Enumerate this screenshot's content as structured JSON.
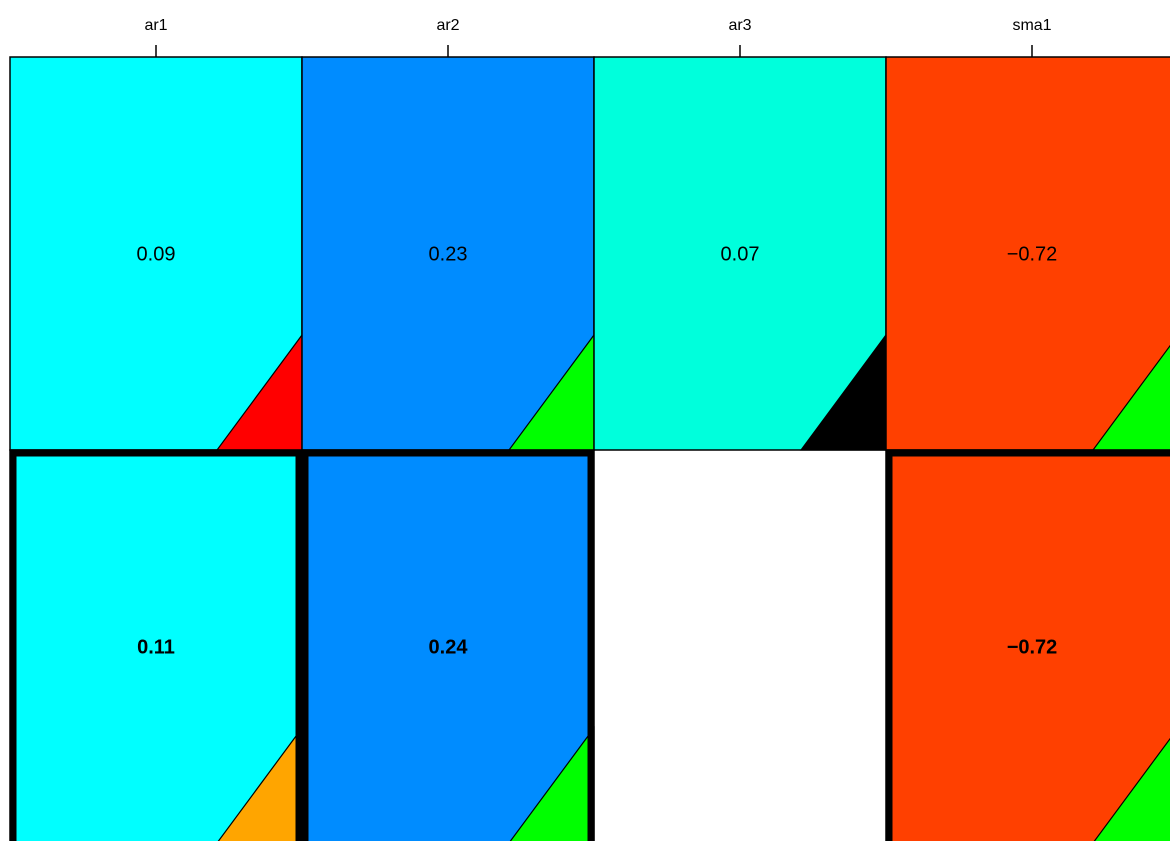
{
  "chart_data": {
    "type": "heatmap",
    "title": "",
    "xlabel": "",
    "ylabel": "",
    "columns": [
      "ar1",
      "ar2",
      "ar3",
      "sma1"
    ],
    "rows": [
      {
        "emphasis": false,
        "cells": [
          {
            "value": 0.09,
            "label": "0.09",
            "color": "#00FFFF",
            "corner_color": "#FF0000"
          },
          {
            "value": 0.23,
            "label": "0.23",
            "color": "#008CFF",
            "corner_color": "#00FF00"
          },
          {
            "value": 0.07,
            "label": "0.07",
            "color": "#00FFDC",
            "corner_color": "#000000"
          },
          {
            "value": -0.72,
            "label": "−0.72",
            "color": "#FF4000",
            "corner_color": "#00FF00"
          }
        ]
      },
      {
        "emphasis": true,
        "cells": [
          {
            "value": 0.11,
            "label": "0.11",
            "color": "#00FFFF",
            "corner_color": "#FFA500"
          },
          {
            "value": 0.24,
            "label": "0.24",
            "color": "#008CFF",
            "corner_color": "#00FF00"
          },
          null,
          {
            "value": -0.72,
            "label": "−0.72",
            "color": "#FF4000",
            "corner_color": "#00FF00"
          }
        ]
      }
    ],
    "grid": false,
    "legend": "none"
  }
}
